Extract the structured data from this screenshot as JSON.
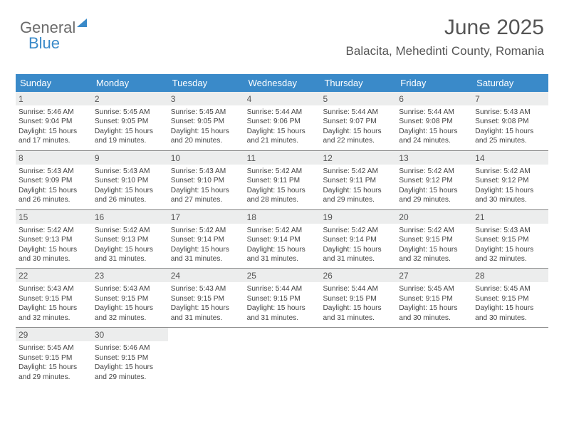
{
  "logo": {
    "word1": "General",
    "word2": "Blue"
  },
  "header": {
    "title": "June 2025",
    "subtitle": "Balacita, Mehedinti County, Romania"
  },
  "day_headers": [
    "Sunday",
    "Monday",
    "Tuesday",
    "Wednesday",
    "Thursday",
    "Friday",
    "Saturday"
  ],
  "colors": {
    "header_bg": "#3a8ac9",
    "header_text": "#ffffff",
    "daynum_bg": "#eceded",
    "border": "#888888",
    "text": "#444444",
    "logo_gray": "#6b6b6b",
    "logo_blue": "#3a8ac9"
  },
  "days": {
    "1": {
      "sunrise": "5:46 AM",
      "sunset": "9:04 PM",
      "daylight": "15 hours and 17 minutes."
    },
    "2": {
      "sunrise": "5:45 AM",
      "sunset": "9:05 PM",
      "daylight": "15 hours and 19 minutes."
    },
    "3": {
      "sunrise": "5:45 AM",
      "sunset": "9:05 PM",
      "daylight": "15 hours and 20 minutes."
    },
    "4": {
      "sunrise": "5:44 AM",
      "sunset": "9:06 PM",
      "daylight": "15 hours and 21 minutes."
    },
    "5": {
      "sunrise": "5:44 AM",
      "sunset": "9:07 PM",
      "daylight": "15 hours and 22 minutes."
    },
    "6": {
      "sunrise": "5:44 AM",
      "sunset": "9:08 PM",
      "daylight": "15 hours and 24 minutes."
    },
    "7": {
      "sunrise": "5:43 AM",
      "sunset": "9:08 PM",
      "daylight": "15 hours and 25 minutes."
    },
    "8": {
      "sunrise": "5:43 AM",
      "sunset": "9:09 PM",
      "daylight": "15 hours and 26 minutes."
    },
    "9": {
      "sunrise": "5:43 AM",
      "sunset": "9:10 PM",
      "daylight": "15 hours and 26 minutes."
    },
    "10": {
      "sunrise": "5:43 AM",
      "sunset": "9:10 PM",
      "daylight": "15 hours and 27 minutes."
    },
    "11": {
      "sunrise": "5:42 AM",
      "sunset": "9:11 PM",
      "daylight": "15 hours and 28 minutes."
    },
    "12": {
      "sunrise": "5:42 AM",
      "sunset": "9:11 PM",
      "daylight": "15 hours and 29 minutes."
    },
    "13": {
      "sunrise": "5:42 AM",
      "sunset": "9:12 PM",
      "daylight": "15 hours and 29 minutes."
    },
    "14": {
      "sunrise": "5:42 AM",
      "sunset": "9:12 PM",
      "daylight": "15 hours and 30 minutes."
    },
    "15": {
      "sunrise": "5:42 AM",
      "sunset": "9:13 PM",
      "daylight": "15 hours and 30 minutes."
    },
    "16": {
      "sunrise": "5:42 AM",
      "sunset": "9:13 PM",
      "daylight": "15 hours and 31 minutes."
    },
    "17": {
      "sunrise": "5:42 AM",
      "sunset": "9:14 PM",
      "daylight": "15 hours and 31 minutes."
    },
    "18": {
      "sunrise": "5:42 AM",
      "sunset": "9:14 PM",
      "daylight": "15 hours and 31 minutes."
    },
    "19": {
      "sunrise": "5:42 AM",
      "sunset": "9:14 PM",
      "daylight": "15 hours and 31 minutes."
    },
    "20": {
      "sunrise": "5:42 AM",
      "sunset": "9:15 PM",
      "daylight": "15 hours and 32 minutes."
    },
    "21": {
      "sunrise": "5:43 AM",
      "sunset": "9:15 PM",
      "daylight": "15 hours and 32 minutes."
    },
    "22": {
      "sunrise": "5:43 AM",
      "sunset": "9:15 PM",
      "daylight": "15 hours and 32 minutes."
    },
    "23": {
      "sunrise": "5:43 AM",
      "sunset": "9:15 PM",
      "daylight": "15 hours and 32 minutes."
    },
    "24": {
      "sunrise": "5:43 AM",
      "sunset": "9:15 PM",
      "daylight": "15 hours and 31 minutes."
    },
    "25": {
      "sunrise": "5:44 AM",
      "sunset": "9:15 PM",
      "daylight": "15 hours and 31 minutes."
    },
    "26": {
      "sunrise": "5:44 AM",
      "sunset": "9:15 PM",
      "daylight": "15 hours and 31 minutes."
    },
    "27": {
      "sunrise": "5:45 AM",
      "sunset": "9:15 PM",
      "daylight": "15 hours and 30 minutes."
    },
    "28": {
      "sunrise": "5:45 AM",
      "sunset": "9:15 PM",
      "daylight": "15 hours and 30 minutes."
    },
    "29": {
      "sunrise": "5:45 AM",
      "sunset": "9:15 PM",
      "daylight": "15 hours and 29 minutes."
    },
    "30": {
      "sunrise": "5:46 AM",
      "sunset": "9:15 PM",
      "daylight": "15 hours and 29 minutes."
    }
  },
  "labels": {
    "sunrise_prefix": "Sunrise: ",
    "sunset_prefix": "Sunset: ",
    "daylight_prefix": "Daylight: "
  }
}
